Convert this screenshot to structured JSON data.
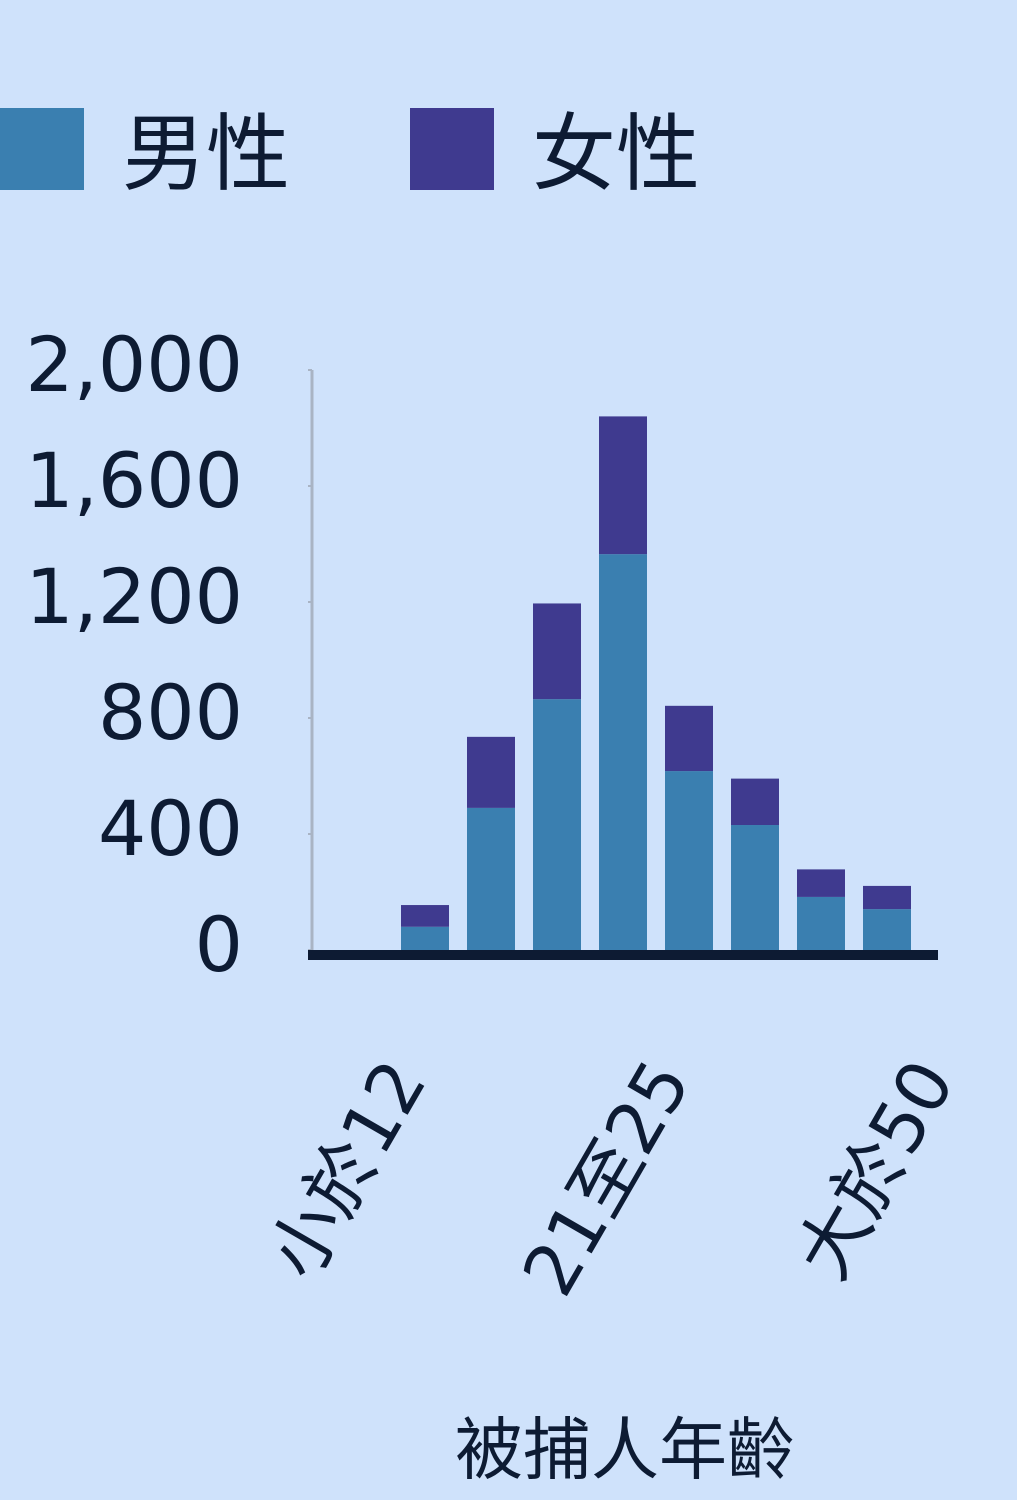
{
  "chart_data": {
    "type": "bar",
    "stacked": true,
    "x_label": "被捕人年齡",
    "categories": [
      "小於12",
      null,
      null,
      null,
      "21至25",
      null,
      null,
      null,
      "大於50"
    ],
    "series": [
      {
        "name": "男性",
        "color": "#3a7fb0",
        "values": [
          0,
          80,
          490,
          865,
          1365,
          617,
          431,
          183,
          141
        ]
      },
      {
        "name": "女性",
        "color": "#3f3a8f",
        "values": [
          0,
          75,
          245,
          330,
          475,
          225,
          160,
          95,
          80
        ]
      }
    ],
    "ylim": [
      0,
      2000
    ],
    "yticks": [
      0,
      400,
      800,
      {
        "value": 1200,
        "label": "1,200"
      },
      {
        "value": 1600,
        "label": "1,600"
      },
      {
        "value": 2000,
        "label": "2,000"
      }
    ],
    "legend": "top-left"
  }
}
